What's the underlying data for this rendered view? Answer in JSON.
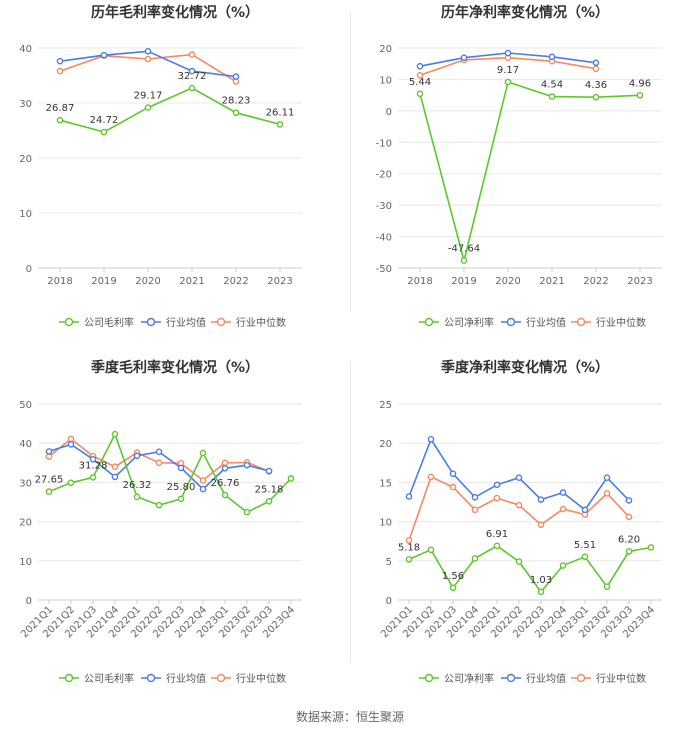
{
  "colors": {
    "company": "#5ec72e",
    "industry_avg": "#4a7de2",
    "industry_median": "#f58a5e",
    "grid": "#e8e8e8",
    "axis_text": "#666666",
    "title": "#333333"
  },
  "legend_labels": {
    "avg": "行业均值",
    "median": "行业中位数"
  },
  "source": "数据来源：恒生聚源",
  "chart_data": [
    {
      "type": "line",
      "title": "历年毛利率变化情况（%）",
      "company_label": "公司毛利率",
      "categories": [
        "2018",
        "2019",
        "2020",
        "2021",
        "2022",
        "2023"
      ],
      "ylim": [
        0,
        40
      ],
      "yticks": [
        0,
        10,
        20,
        30,
        40
      ],
      "series": [
        {
          "name": "公司毛利率",
          "key": "company",
          "values": [
            26.87,
            24.72,
            29.17,
            32.72,
            28.23,
            26.11
          ]
        },
        {
          "name": "行业均值",
          "key": "industry_avg",
          "values": [
            37.6,
            38.7,
            39.4,
            35.8,
            34.8,
            null
          ]
        },
        {
          "name": "行业中位数",
          "key": "industry_median",
          "values": [
            35.8,
            38.6,
            38.0,
            38.8,
            33.9,
            null
          ]
        }
      ],
      "labels": [
        {
          "index": 0,
          "text": "26.87"
        },
        {
          "index": 1,
          "text": "24.72"
        },
        {
          "index": 2,
          "text": "29.17"
        },
        {
          "index": 3,
          "text": "32.72"
        },
        {
          "index": 4,
          "text": "28.23"
        },
        {
          "index": 5,
          "text": "26.11"
        }
      ],
      "xlabel": "",
      "ylabel": ""
    },
    {
      "type": "line",
      "title": "历年净利率变化情况（%）",
      "company_label": "公司净利率",
      "categories": [
        "2018",
        "2019",
        "2020",
        "2021",
        "2022",
        "2023"
      ],
      "ylim": [
        -50,
        20
      ],
      "yticks": [
        -50,
        -40,
        -30,
        -20,
        -10,
        0,
        10,
        20
      ],
      "series": [
        {
          "name": "公司净利率",
          "key": "company",
          "values": [
            5.44,
            -47.64,
            9.17,
            4.54,
            4.36,
            4.96
          ]
        },
        {
          "name": "行业均值",
          "key": "industry_avg",
          "values": [
            14.2,
            16.9,
            18.4,
            17.2,
            15.3,
            null
          ]
        },
        {
          "name": "行业中位数",
          "key": "industry_median",
          "values": [
            11.3,
            16.2,
            16.9,
            15.8,
            13.4,
            null
          ]
        }
      ],
      "labels": [
        {
          "index": 0,
          "text": "5.44"
        },
        {
          "index": 1,
          "text": "-47.64"
        },
        {
          "index": 2,
          "text": "9.17"
        },
        {
          "index": 3,
          "text": "4.54"
        },
        {
          "index": 4,
          "text": "4.36"
        },
        {
          "index": 5,
          "text": "4.96"
        }
      ],
      "xlabel": "",
      "ylabel": ""
    },
    {
      "type": "line",
      "title": "季度毛利率变化情况（%）",
      "company_label": "公司毛利率",
      "categories": [
        "2021Q1",
        "2021Q2",
        "2021Q3",
        "2021Q4",
        "2022Q1",
        "2022Q2",
        "2022Q3",
        "2022Q4",
        "2023Q1",
        "2023Q2",
        "2023Q3",
        "2023Q4"
      ],
      "ylim": [
        0,
        50
      ],
      "yticks": [
        0,
        10,
        20,
        30,
        40,
        50
      ],
      "series": [
        {
          "name": "公司毛利率",
          "key": "company",
          "values": [
            27.65,
            29.9,
            31.28,
            42.3,
            26.32,
            24.2,
            25.8,
            37.5,
            26.76,
            22.4,
            25.18,
            31.0
          ]
        },
        {
          "name": "行业均值",
          "key": "industry_avg",
          "values": [
            37.9,
            39.7,
            35.9,
            31.4,
            36.8,
            37.8,
            33.7,
            28.3,
            33.6,
            34.4,
            32.9,
            null
          ]
        },
        {
          "name": "行业中位数",
          "key": "industry_median",
          "values": [
            36.6,
            41.1,
            36.7,
            34.0,
            37.6,
            35.0,
            34.9,
            30.5,
            35.0,
            35.1,
            32.8,
            null
          ]
        }
      ],
      "labels": [
        {
          "index": 0,
          "text": "27.65"
        },
        {
          "index": 2,
          "text": "31.28"
        },
        {
          "index": 4,
          "text": "26.32"
        },
        {
          "index": 6,
          "text": "25.80"
        },
        {
          "index": 8,
          "text": "26.76"
        },
        {
          "index": 10,
          "text": "25.18"
        }
      ],
      "xlabel": "",
      "ylabel": ""
    },
    {
      "type": "line",
      "title": "季度净利率变化情况（%）",
      "company_label": "公司净利率",
      "categories": [
        "2021Q1",
        "2021Q2",
        "2021Q3",
        "2021Q4",
        "2022Q1",
        "2022Q2",
        "2022Q3",
        "2022Q4",
        "2023Q1",
        "2023Q2",
        "2023Q3",
        "2023Q4"
      ],
      "ylim": [
        0,
        25
      ],
      "yticks": [
        0,
        5,
        10,
        15,
        20,
        25
      ],
      "series": [
        {
          "name": "公司净利率",
          "key": "company",
          "values": [
            5.18,
            6.4,
            1.56,
            5.3,
            6.91,
            4.9,
            1.03,
            4.4,
            5.51,
            1.7,
            6.2,
            6.7
          ]
        },
        {
          "name": "行业均值",
          "key": "industry_avg",
          "values": [
            13.2,
            20.5,
            16.1,
            13.1,
            14.7,
            15.6,
            12.8,
            13.7,
            11.5,
            15.6,
            12.7,
            null
          ]
        },
        {
          "name": "行业中位数",
          "key": "industry_median",
          "values": [
            7.6,
            15.7,
            14.4,
            11.5,
            13.0,
            12.1,
            9.6,
            11.6,
            10.9,
            13.6,
            10.6,
            null
          ]
        }
      ],
      "labels": [
        {
          "index": 0,
          "text": "5.18"
        },
        {
          "index": 2,
          "text": "1.56"
        },
        {
          "index": 4,
          "text": "6.91"
        },
        {
          "index": 6,
          "text": "1.03"
        },
        {
          "index": 8,
          "text": "5.51"
        },
        {
          "index": 10,
          "text": "6.20"
        }
      ],
      "xlabel": "",
      "ylabel": ""
    }
  ]
}
